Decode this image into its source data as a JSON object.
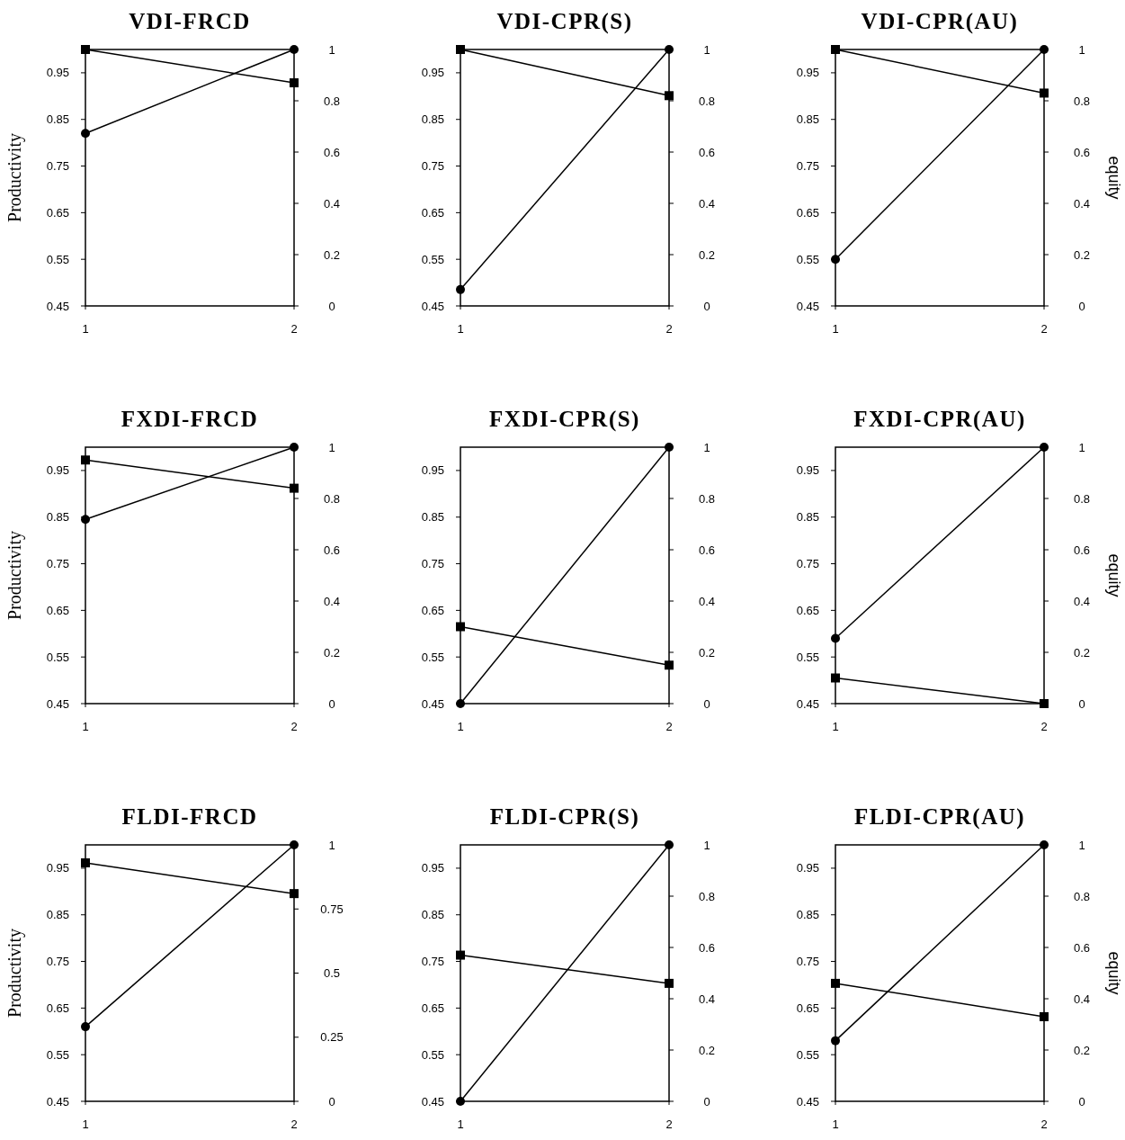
{
  "chart_data": [
    {
      "type": "line",
      "title": "VDI-FRCD",
      "ylabel": "Productivity",
      "categories": [
        "1",
        "2"
      ],
      "ylim": [
        0.45,
        1.0
      ],
      "yticks": [
        0.45,
        0.55,
        0.65,
        0.75,
        0.85,
        0.95
      ],
      "y2lim": [
        0,
        1
      ],
      "y2ticks": [
        0,
        0.2,
        0.4,
        0.6,
        0.8,
        1
      ],
      "grid": false,
      "legend": false,
      "line_style": "solid",
      "series": [
        {
          "color": "#000000",
          "marker": "circle",
          "values": [
            0.82,
            1.0
          ]
        },
        {
          "color": "#000000",
          "marker": "square",
          "axis": "y2",
          "values": [
            1,
            0.87
          ]
        }
      ]
    },
    {
      "type": "line",
      "title": "VDI-CPR(S)",
      "categories": [
        "1",
        "2"
      ],
      "ylim": [
        0.45,
        1.0
      ],
      "yticks": [
        0.45,
        0.55,
        0.65,
        0.75,
        0.85,
        0.95
      ],
      "y2lim": [
        0,
        1
      ],
      "y2ticks": [
        0,
        0.2,
        0.4,
        0.6,
        0.8,
        1
      ],
      "grid": false,
      "legend": false,
      "line_style": "solid",
      "series": [
        {
          "color": "#000000",
          "marker": "circle",
          "values": [
            0.485,
            1.0
          ]
        },
        {
          "color": "#000000",
          "marker": "square",
          "axis": "y2",
          "values": [
            1,
            0.82
          ]
        }
      ]
    },
    {
      "type": "line",
      "title": "VDI-CPR(AU)",
      "y2label": "equity",
      "categories": [
        "1",
        "2"
      ],
      "ylim": [
        0.45,
        1.0
      ],
      "yticks": [
        0.45,
        0.55,
        0.65,
        0.75,
        0.85,
        0.95
      ],
      "y2lim": [
        0,
        1
      ],
      "y2ticks": [
        0,
        0.2,
        0.4,
        0.6,
        0.8,
        1
      ],
      "grid": false,
      "legend": false,
      "line_style": "solid",
      "series": [
        {
          "color": "#000000",
          "marker": "circle",
          "values": [
            0.55,
            1.0
          ]
        },
        {
          "color": "#000000",
          "marker": "square",
          "axis": "y2",
          "values": [
            1,
            0.83
          ]
        }
      ]
    },
    {
      "type": "line",
      "title": "FXDI-FRCD",
      "ylabel": "Productivity",
      "categories": [
        "1",
        "2"
      ],
      "ylim": [
        0.45,
        1.0
      ],
      "yticks": [
        0.45,
        0.55,
        0.65,
        0.75,
        0.85,
        0.95
      ],
      "y2lim": [
        0,
        1
      ],
      "y2ticks": [
        0,
        0.2,
        0.4,
        0.6,
        0.8,
        1
      ],
      "grid": false,
      "legend": false,
      "line_style": "solid",
      "series": [
        {
          "color": "#000000",
          "marker": "circle",
          "values": [
            0.845,
            1.0
          ]
        },
        {
          "color": "#000000",
          "marker": "square",
          "axis": "y2",
          "values": [
            0.95,
            0.84
          ]
        }
      ]
    },
    {
      "type": "line",
      "title": "FXDI-CPR(S)",
      "categories": [
        "1",
        "2"
      ],
      "ylim": [
        0.45,
        1.0
      ],
      "yticks": [
        0.45,
        0.55,
        0.65,
        0.75,
        0.85,
        0.95
      ],
      "y2lim": [
        0,
        1
      ],
      "y2ticks": [
        0,
        0.2,
        0.4,
        0.6,
        0.8,
        1
      ],
      "grid": false,
      "legend": false,
      "line_style": "solid",
      "series": [
        {
          "color": "#000000",
          "marker": "circle",
          "values": [
            0.45,
            1.0
          ]
        },
        {
          "color": "#000000",
          "marker": "square",
          "axis": "y2",
          "values": [
            0.3,
            0.15
          ]
        }
      ]
    },
    {
      "type": "line",
      "title": "FXDI-CPR(AU)",
      "y2label": "equity",
      "categories": [
        "1",
        "2"
      ],
      "ylim": [
        0.45,
        1.0
      ],
      "yticks": [
        0.45,
        0.55,
        0.65,
        0.75,
        0.85,
        0.95
      ],
      "y2lim": [
        0,
        1
      ],
      "y2ticks": [
        0,
        0.2,
        0.4,
        0.6,
        0.8,
        1
      ],
      "grid": false,
      "legend": false,
      "line_style": "solid",
      "series": [
        {
          "color": "#000000",
          "marker": "circle",
          "values": [
            0.59,
            1.0
          ]
        },
        {
          "color": "#000000",
          "marker": "square",
          "axis": "y2",
          "values": [
            0.1,
            0
          ]
        }
      ]
    },
    {
      "type": "line",
      "title": "FLDI-FRCD",
      "ylabel": "Productivity",
      "categories": [
        "1",
        "2"
      ],
      "ylim": [
        0.45,
        1.0
      ],
      "yticks": [
        0.45,
        0.55,
        0.65,
        0.75,
        0.85,
        0.95
      ],
      "y2lim": [
        0,
        1
      ],
      "y2ticks": [
        0,
        0.25,
        0.5,
        0.75,
        1
      ],
      "grid": false,
      "legend": false,
      "line_style": "solid",
      "series": [
        {
          "color": "#000000",
          "marker": "circle",
          "values": [
            0.61,
            1.0
          ]
        },
        {
          "color": "#000000",
          "marker": "square",
          "axis": "y2",
          "values": [
            0.93,
            0.81
          ]
        }
      ]
    },
    {
      "type": "line",
      "title": "FLDI-CPR(S)",
      "categories": [
        "1",
        "2"
      ],
      "ylim": [
        0.45,
        1.0
      ],
      "yticks": [
        0.45,
        0.55,
        0.65,
        0.75,
        0.85,
        0.95
      ],
      "y2lim": [
        0,
        1
      ],
      "y2ticks": [
        0,
        0.2,
        0.4,
        0.6,
        0.8,
        1
      ],
      "grid": false,
      "legend": false,
      "line_style": "solid",
      "series": [
        {
          "color": "#000000",
          "marker": "circle",
          "values": [
            0.45,
            1.0
          ]
        },
        {
          "color": "#000000",
          "marker": "square",
          "axis": "y2",
          "values": [
            0.57,
            0.46
          ]
        }
      ]
    },
    {
      "type": "line",
      "title": "FLDI-CPR(AU)",
      "y2label": "equity",
      "categories": [
        "1",
        "2"
      ],
      "ylim": [
        0.45,
        1.0
      ],
      "yticks": [
        0.45,
        0.55,
        0.65,
        0.75,
        0.85,
        0.95
      ],
      "y2lim": [
        0,
        1
      ],
      "y2ticks": [
        0,
        0.2,
        0.4,
        0.6,
        0.8,
        1
      ],
      "grid": false,
      "legend": false,
      "line_style": "solid",
      "series": [
        {
          "color": "#000000",
          "marker": "circle",
          "values": [
            0.58,
            1.0
          ]
        },
        {
          "color": "#000000",
          "marker": "square",
          "axis": "y2",
          "values": [
            0.46,
            0.33
          ]
        }
      ]
    }
  ]
}
